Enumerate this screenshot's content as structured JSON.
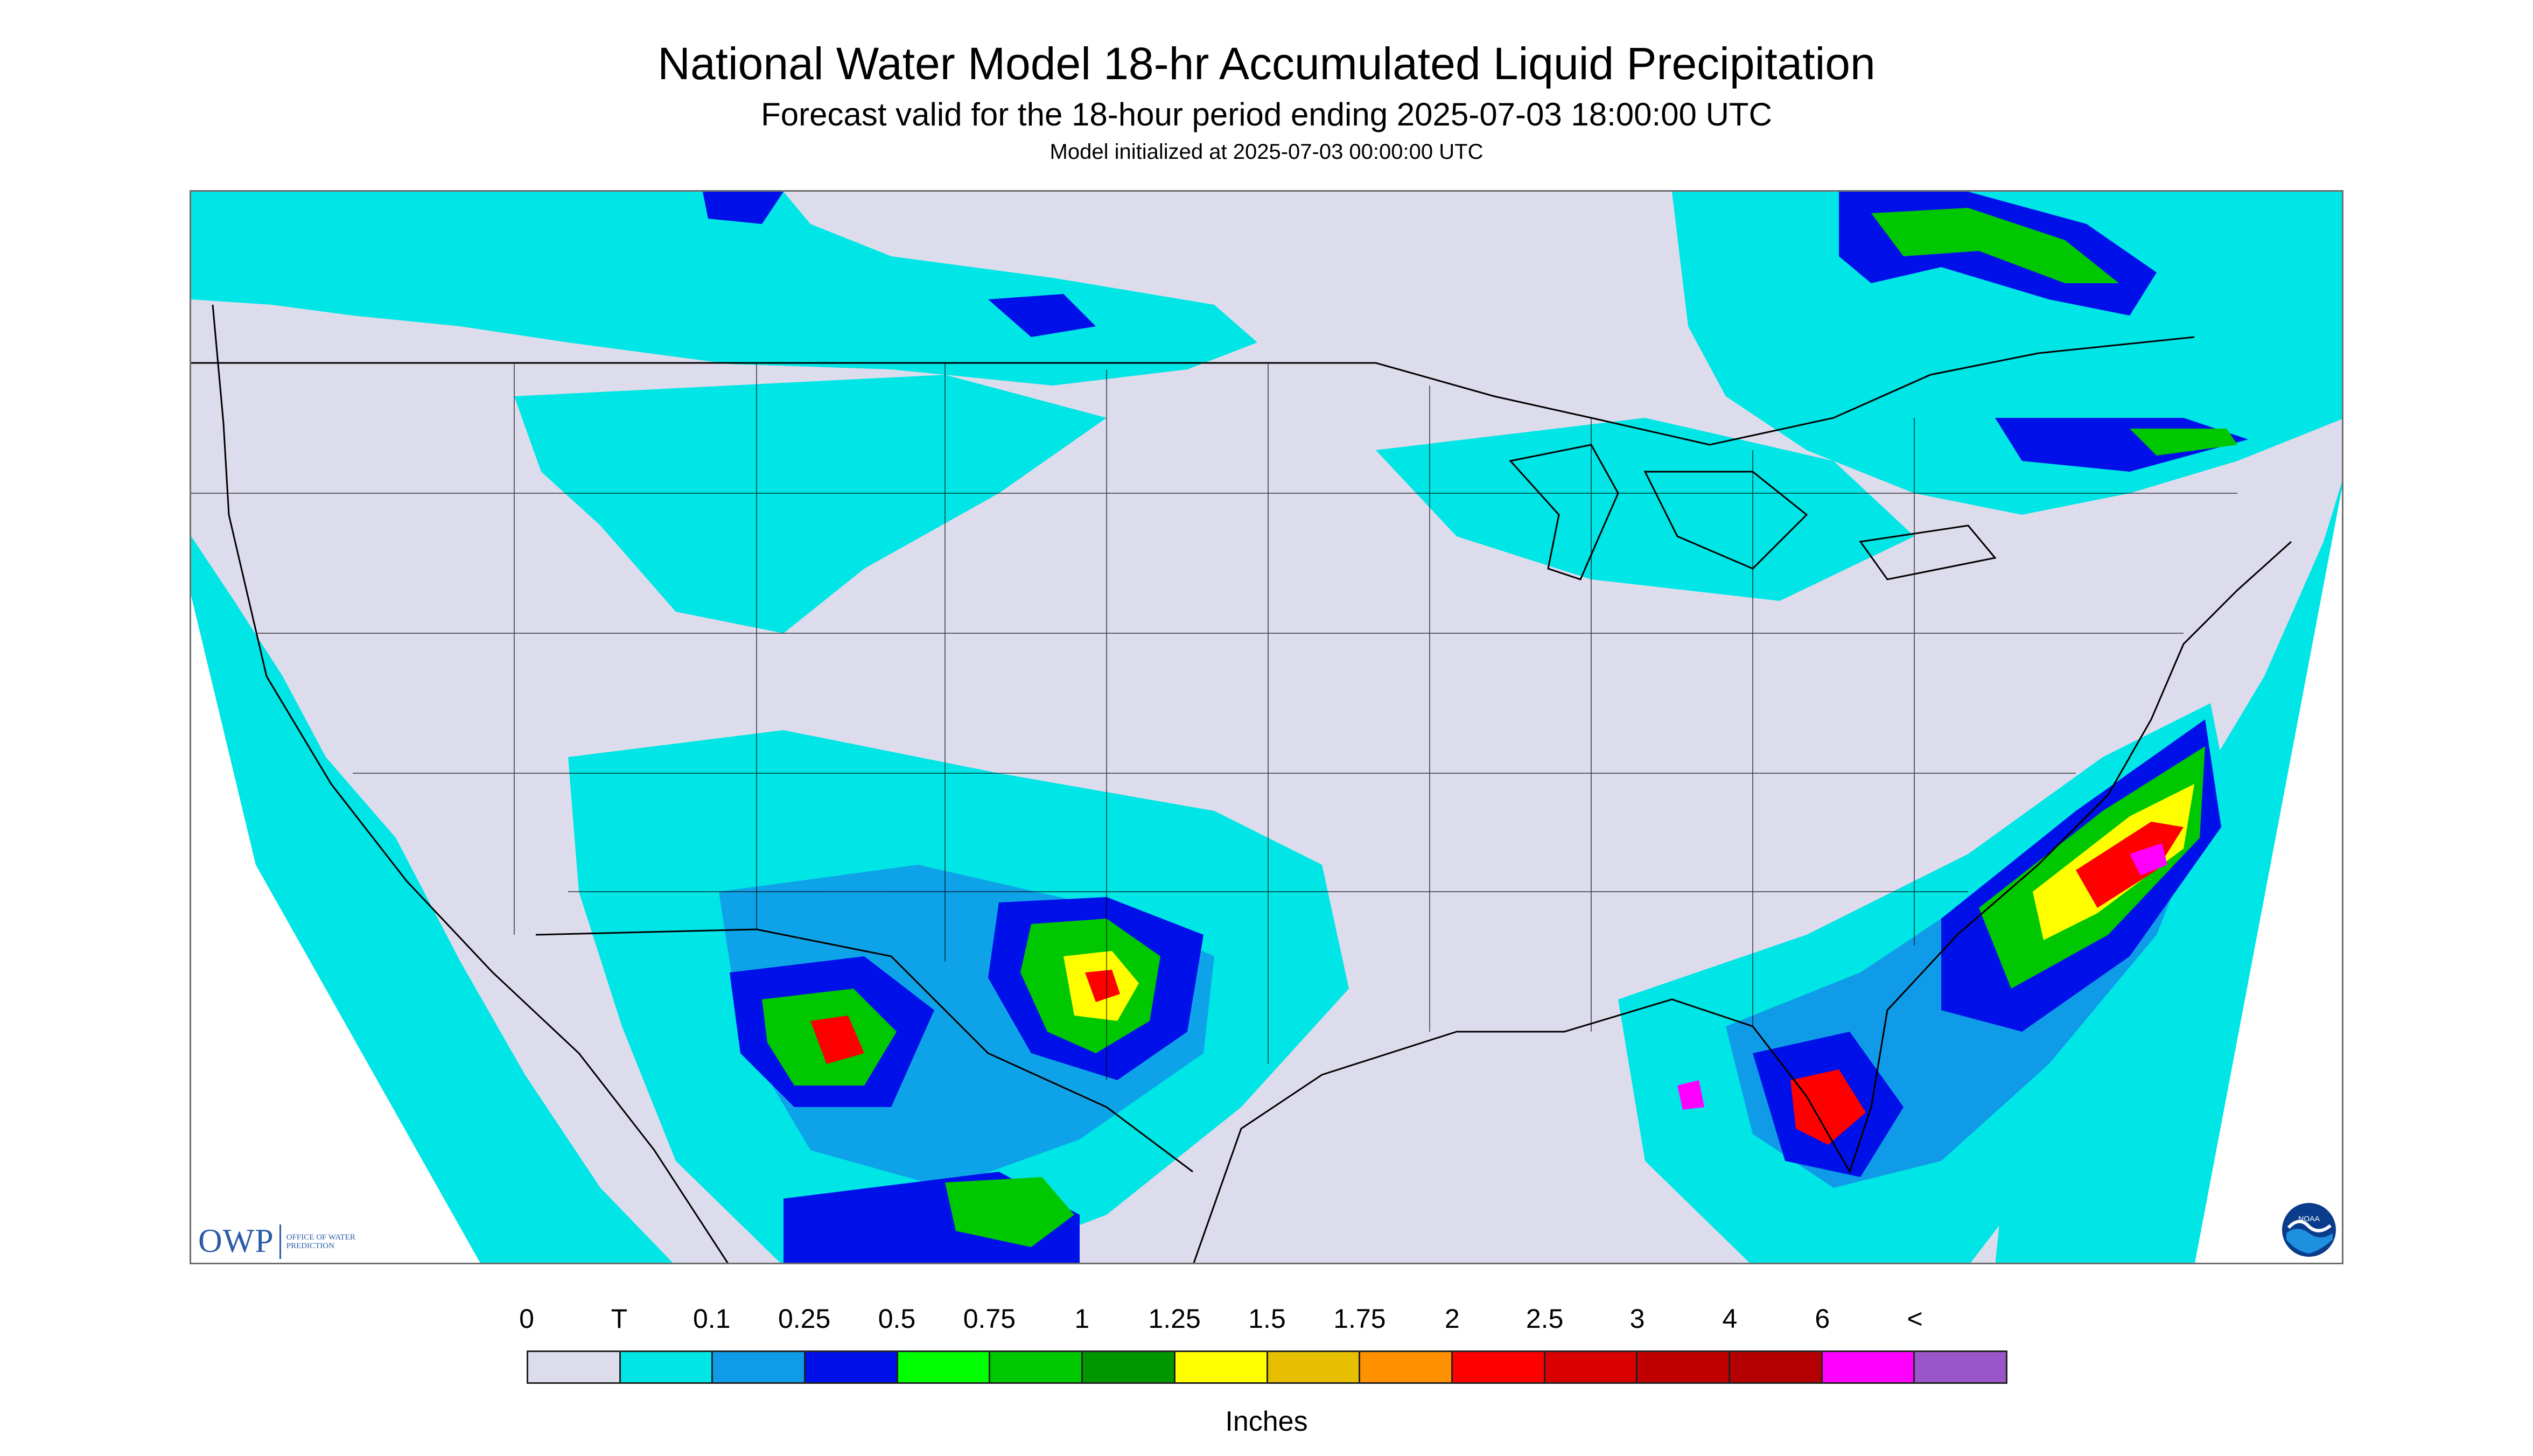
{
  "title": "National Water Model 18-hr Accumulated Liquid Precipitation",
  "subtitle": "Forecast valid for the 18-hour period ending 2025-07-03 18:00:00 UTC",
  "init_line": "Model initialized at 2025-07-03 00:00:00 UTC",
  "logos": {
    "owp_mark": "OWP",
    "owp_text": "OFFICE OF WATER PREDICTION",
    "noaa_text": "NOAA"
  },
  "legend": {
    "labels": [
      "0",
      "T",
      "0.1",
      "0.25",
      "0.5",
      "0.75",
      "1",
      "1.25",
      "1.5",
      "1.75",
      "2",
      "2.5",
      "3",
      "4",
      "6",
      "<"
    ],
    "colors": [
      "#dcdcec",
      "#00e5e5",
      "#0f9be8",
      "#0010e8",
      "#00ff00",
      "#00c800",
      "#009600",
      "#ffff00",
      "#e6c000",
      "#ff9000",
      "#ff0000",
      "#d80000",
      "#c00000",
      "#b40000",
      "#ff00ff",
      "#9a55c9"
    ],
    "units": "Inches"
  },
  "colors": {
    "no_precip": "#dcdcec",
    "trace": "#00e5e5",
    "light": "#0f9be8",
    "moderate": "#0010e8",
    "green": "#00c800",
    "yellow": "#ffff00",
    "orange": "#ff9000",
    "red": "#ff0000",
    "magenta": "#ff00ff",
    "boundary": "#000000"
  }
}
